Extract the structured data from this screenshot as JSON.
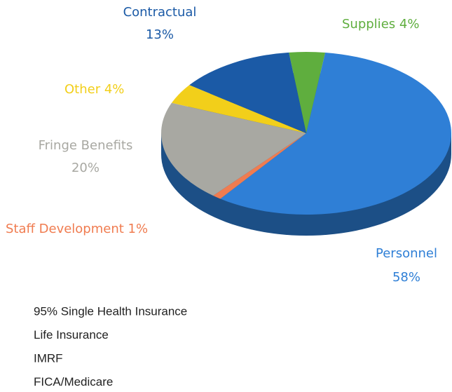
{
  "chart_data": {
    "type": "pie",
    "categories": [
      "Supplies",
      "Personnel",
      "Staff Development",
      "Fringe Benefits",
      "Other",
      "Contractual"
    ],
    "values": [
      4,
      58,
      1,
      20,
      4,
      13
    ],
    "value_labels": [
      "4%",
      "58%",
      "1%",
      "20%",
      "4%",
      "13%"
    ],
    "colors": [
      "#5fae3e",
      "#2f7fd6",
      "#f07c50",
      "#a8a8a2",
      "#f2cf1a",
      "#1b5aa6"
    ]
  },
  "notes": [
    "95% Single Health Insurance",
    "Life Insurance",
    "IMRF",
    "FICA/Medicare"
  ]
}
